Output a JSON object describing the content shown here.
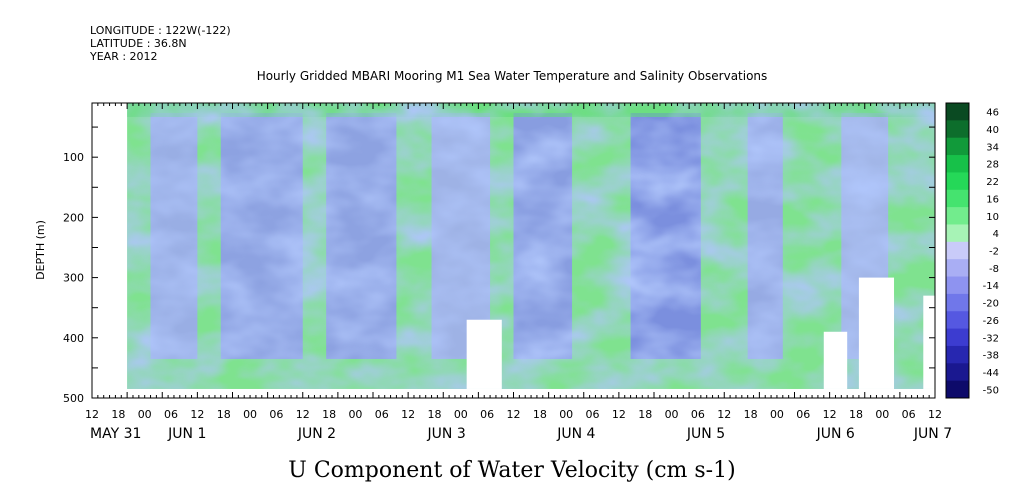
{
  "header": {
    "longitude": "LONGITUDE : 122W(-122)",
    "latitude": "LATITUDE : 36.8N",
    "year": "YEAR : 2012"
  },
  "chart_data": {
    "type": "heatmap",
    "title": "Hourly Gridded MBARI Mooring M1 Sea Water Temperature and Salinity Observations",
    "xlabel": "U Component of Water Velocity (cm s-1)",
    "ylabel": "DEPTH (m)",
    "y_ticks": [
      100,
      200,
      300,
      400,
      500
    ],
    "y_range": [
      10,
      500
    ],
    "y_reversed": true,
    "x_range_hours": [
      0,
      144
    ],
    "x_tick_labels": [
      "12",
      "18",
      "00",
      "06",
      "12",
      "18",
      "00",
      "06",
      "12",
      "18",
      "00",
      "06",
      "12",
      "18",
      "00",
      "06",
      "12",
      "18",
      "00",
      "06",
      "12",
      "18",
      "00",
      "06",
      "12",
      "18",
      "00",
      "06",
      "12",
      "18",
      "00",
      "06",
      "12"
    ],
    "date_labels": [
      {
        "text": "MAY 31",
        "hour": 0
      },
      {
        "text": "JUN  1",
        "hour": 18
      },
      {
        "text": "JUN  2",
        "hour": 42
      },
      {
        "text": "JUN  3",
        "hour": 66
      },
      {
        "text": "JUN  4",
        "hour": 90
      },
      {
        "text": "JUN  5",
        "hour": 114
      },
      {
        "text": "JUN  6",
        "hour": 138
      },
      {
        "text": "JUN  7",
        "hour": 156
      }
    ],
    "colorbar_levels": [
      46,
      40,
      34,
      28,
      22,
      16,
      10,
      4,
      -2,
      -8,
      -14,
      -20,
      -26,
      -32,
      -38,
      -44,
      -50
    ],
    "colorbar_colors": [
      "#0a4a22",
      "#0d6e2c",
      "#119a3a",
      "#17c149",
      "#25d858",
      "#45e36f",
      "#72ec8d",
      "#a7f3b6",
      "#c9cbf9",
      "#a9aef4",
      "#8e93f0",
      "#7077ea",
      "#5558e1",
      "#3c3cd0",
      "#2727b0",
      "#1a1890",
      "#0d0a6a"
    ],
    "data_start_hour": 6,
    "data_end_hour": 148,
    "data_max_depth": 485
  }
}
